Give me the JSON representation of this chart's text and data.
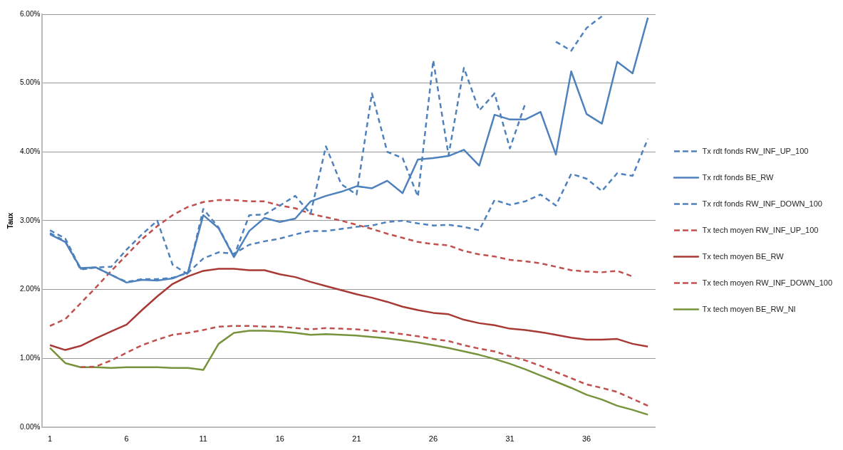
{
  "chart_data": {
    "type": "line",
    "ylabel": "Taux",
    "x": [
      1,
      2,
      3,
      4,
      5,
      6,
      7,
      8,
      9,
      10,
      11,
      12,
      13,
      14,
      15,
      16,
      17,
      18,
      19,
      20,
      21,
      22,
      23,
      24,
      25,
      26,
      27,
      28,
      29,
      30,
      31,
      32,
      33,
      34,
      35,
      36,
      37,
      38,
      39,
      40
    ],
    "xlim": [
      0.5,
      40.5
    ],
    "xticks": [
      1,
      6,
      11,
      16,
      21,
      26,
      31,
      36
    ],
    "ylim": [
      0,
      6
    ],
    "yticks": [
      {
        "value": 0,
        "label": "0.00%"
      },
      {
        "value": 1,
        "label": "1.00%"
      },
      {
        "value": 2,
        "label": "2.00%"
      },
      {
        "value": 3,
        "label": "3.00%"
      },
      {
        "value": 4,
        "label": "4.00%"
      },
      {
        "value": 5,
        "label": "5.00%"
      },
      {
        "value": 6,
        "label": "6.00%"
      }
    ],
    "grid": "y",
    "legend": "right",
    "marker": "none",
    "series": [
      {
        "name": "Tx rdt fonds RW_INF_UP_100",
        "color": "#4f81bd",
        "line_style": "dashed",
        "values": [
          2.86,
          2.74,
          2.3,
          2.32,
          2.21,
          2.11,
          2.15,
          2.15,
          2.17,
          2.24,
          2.45,
          2.54,
          2.52,
          2.65,
          2.7,
          2.74,
          2.8,
          2.85,
          2.85,
          2.88,
          2.91,
          2.93,
          2.98,
          3.0,
          2.96,
          2.93,
          2.94,
          2.91,
          2.86,
          3.3,
          3.23,
          3.28,
          3.38,
          3.22,
          3.68,
          3.61,
          3.43,
          3.69,
          3.65,
          4.19
        ]
      },
      {
        "name": "Tx rdt fonds BE_RW",
        "color": "#4f81bd",
        "line_style": "solid",
        "values": [
          2.8,
          2.69,
          2.31,
          2.32,
          2.21,
          2.1,
          2.14,
          2.13,
          2.16,
          2.25,
          3.08,
          2.89,
          2.47,
          2.85,
          3.04,
          2.98,
          3.03,
          3.28,
          3.36,
          3.42,
          3.5,
          3.47,
          3.58,
          3.4,
          3.89,
          3.91,
          3.94,
          4.03,
          3.8,
          4.54,
          4.47,
          4.47,
          4.58,
          3.96,
          5.17,
          4.55,
          4.41,
          5.31,
          5.14,
          5.95
        ]
      },
      {
        "name": "Tx rdt fonds RW_INF_DOWN_100",
        "color": "#4f81bd",
        "line_style": "dashed",
        "values": [
          2.82,
          2.7,
          2.29,
          2.32,
          2.33,
          2.58,
          2.8,
          3.0,
          2.36,
          2.22,
          3.17,
          2.9,
          2.48,
          3.08,
          3.09,
          3.22,
          3.36,
          3.1,
          4.08,
          3.53,
          3.38,
          4.85,
          4.0,
          3.91,
          3.35,
          5.33,
          3.95,
          5.22,
          4.6,
          4.85,
          4.05,
          4.7,
          null,
          5.6,
          5.47,
          5.8,
          5.97,
          null,
          null,
          null
        ]
      },
      {
        "name": "Tx tech moyen RW_INF_UP_100",
        "color": "#c0504d",
        "line_style": "dashed",
        "values": [
          1.47,
          1.57,
          1.8,
          2.03,
          2.27,
          2.5,
          2.73,
          2.92,
          3.08,
          3.2,
          3.27,
          3.3,
          3.3,
          3.28,
          3.28,
          3.22,
          3.18,
          3.1,
          3.05,
          3.0,
          2.94,
          2.88,
          2.81,
          2.75,
          2.69,
          2.66,
          2.64,
          2.56,
          2.51,
          2.48,
          2.43,
          2.41,
          2.38,
          2.33,
          2.28,
          2.26,
          2.25,
          2.27,
          2.19,
          null
        ]
      },
      {
        "name": "Tx tech moyen BE_RW",
        "color": "#a83a36",
        "line_style": "solid",
        "values": [
          1.19,
          1.12,
          1.18,
          1.29,
          1.39,
          1.49,
          1.7,
          1.9,
          2.08,
          2.19,
          2.27,
          2.3,
          2.3,
          2.28,
          2.28,
          2.22,
          2.18,
          2.11,
          2.05,
          1.99,
          1.93,
          1.88,
          1.82,
          1.75,
          1.7,
          1.66,
          1.64,
          1.56,
          1.51,
          1.48,
          1.43,
          1.41,
          1.38,
          1.34,
          1.3,
          1.27,
          1.27,
          1.28,
          1.21,
          1.17
        ]
      },
      {
        "name": "Tx tech moyen RW_INF_DOWN_100",
        "color": "#c0504d",
        "line_style": "dashed",
        "values": [
          null,
          null,
          0.87,
          0.88,
          0.97,
          1.08,
          1.19,
          1.27,
          1.34,
          1.37,
          1.41,
          1.46,
          1.47,
          1.47,
          1.46,
          1.46,
          1.44,
          1.42,
          1.44,
          1.43,
          1.42,
          1.4,
          1.38,
          1.35,
          1.32,
          1.28,
          1.25,
          1.19,
          1.14,
          1.1,
          1.03,
          0.97,
          0.89,
          0.8,
          0.71,
          0.62,
          0.57,
          0.51,
          0.41,
          0.31
        ]
      },
      {
        "name": "Tx tech moyen BE_RW_NI",
        "color": "#77933c",
        "line_style": "solid",
        "values": [
          1.15,
          0.93,
          0.87,
          0.87,
          0.86,
          0.87,
          0.87,
          0.87,
          0.86,
          0.86,
          0.83,
          1.21,
          1.37,
          1.4,
          1.4,
          1.39,
          1.37,
          1.34,
          1.35,
          1.34,
          1.33,
          1.31,
          1.29,
          1.26,
          1.23,
          1.19,
          1.15,
          1.1,
          1.05,
          0.99,
          0.92,
          0.84,
          0.75,
          0.66,
          0.57,
          0.47,
          0.4,
          0.31,
          0.25,
          0.18
        ]
      }
    ]
  }
}
